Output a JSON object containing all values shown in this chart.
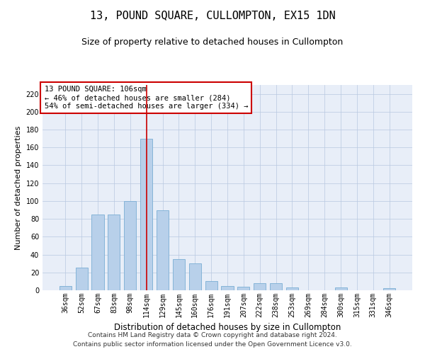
{
  "title": "13, POUND SQUARE, CULLOMPTON, EX15 1DN",
  "subtitle": "Size of property relative to detached houses in Cullompton",
  "xlabel": "Distribution of detached houses by size in Cullompton",
  "ylabel": "Number of detached properties",
  "categories": [
    "36sqm",
    "52sqm",
    "67sqm",
    "83sqm",
    "98sqm",
    "114sqm",
    "129sqm",
    "145sqm",
    "160sqm",
    "176sqm",
    "191sqm",
    "207sqm",
    "222sqm",
    "238sqm",
    "253sqm",
    "269sqm",
    "284sqm",
    "300sqm",
    "315sqm",
    "331sqm",
    "346sqm"
  ],
  "values": [
    5,
    25,
    85,
    85,
    100,
    170,
    90,
    35,
    30,
    10,
    5,
    4,
    8,
    8,
    3,
    0,
    0,
    3,
    0,
    0,
    2
  ],
  "bar_color": "#b8d0ea",
  "bar_edge_color": "#7aadd4",
  "background_color": "#e8eef8",
  "vline_x": 5,
  "vline_color": "#cc0000",
  "annotation_text": "13 POUND SQUARE: 106sqm\n← 46% of detached houses are smaller (284)\n54% of semi-detached houses are larger (334) →",
  "annotation_box_color": "#ffffff",
  "annotation_box_edge": "#cc0000",
  "ylim": [
    0,
    230
  ],
  "yticks": [
    0,
    20,
    40,
    60,
    80,
    100,
    120,
    140,
    160,
    180,
    200,
    220
  ],
  "footer1": "Contains HM Land Registry data © Crown copyright and database right 2024.",
  "footer2": "Contains public sector information licensed under the Open Government Licence v3.0.",
  "title_fontsize": 11,
  "subtitle_fontsize": 9,
  "xlabel_fontsize": 8.5,
  "ylabel_fontsize": 8,
  "tick_fontsize": 7,
  "annotation_fontsize": 7.5,
  "footer_fontsize": 6.5
}
